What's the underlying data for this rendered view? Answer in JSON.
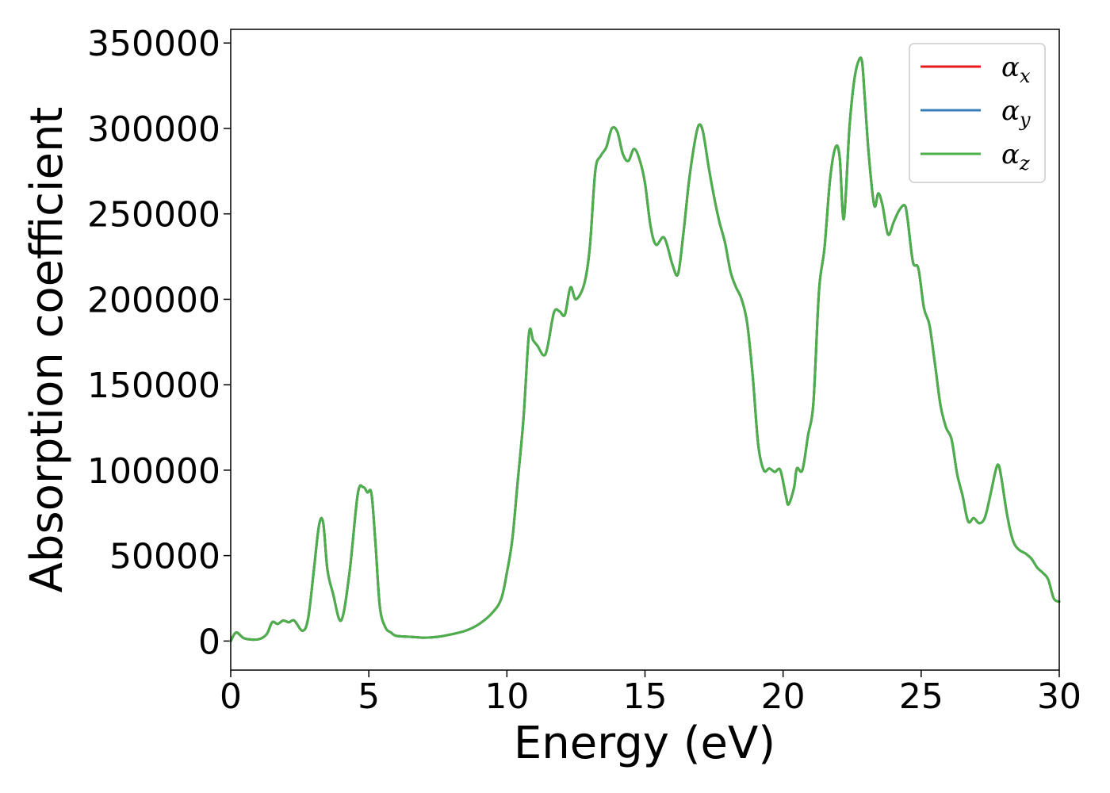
{
  "chart_data": {
    "type": "line",
    "xlabel": "Energy (eV)",
    "ylabel": "Absorption coefficient",
    "xlim": [
      0,
      30
    ],
    "ylim": [
      -17000,
      358000
    ],
    "x_ticks": [
      0,
      5,
      10,
      15,
      20,
      25,
      30
    ],
    "y_ticks": [
      0,
      50000,
      100000,
      150000,
      200000,
      250000,
      300000,
      350000
    ],
    "grid": false,
    "legend_position": "top-right",
    "legend_entries": [
      {
        "label": "α",
        "sub": "x",
        "color": "#e41a1c"
      },
      {
        "label": "α",
        "sub": "y",
        "color": "#377eb8"
      },
      {
        "label": "α",
        "sub": "z",
        "color": "#4daf4a"
      }
    ],
    "x": [
      0,
      0.2,
      0.5,
      1,
      1.3,
      1.5,
      1.7,
      1.9,
      2.1,
      2.3,
      2.6,
      2.8,
      3,
      3.2,
      3.35,
      3.5,
      3.7,
      4,
      4.3,
      4.6,
      4.8,
      4.95,
      5.1,
      5.25,
      5.4,
      5.6,
      5.8,
      6,
      6.5,
      7,
      7.5,
      8,
      8.5,
      9,
      9.5,
      9.8,
      10,
      10.2,
      10.4,
      10.6,
      10.8,
      10.95,
      11.1,
      11.4,
      11.7,
      11.9,
      12.1,
      12.3,
      12.5,
      12.8,
      13,
      13.2,
      13.4,
      13.6,
      13.8,
      14,
      14.2,
      14.4,
      14.6,
      14.8,
      15,
      15.2,
      15.4,
      15.7,
      16,
      16.2,
      16.4,
      16.6,
      16.8,
      16.95,
      17.1,
      17.3,
      17.5,
      17.7,
      17.9,
      18.1,
      18.3,
      18.5,
      18.7,
      18.9,
      19.1,
      19.3,
      19.5,
      19.7,
      19.9,
      20.1,
      20.2,
      20.4,
      20.5,
      20.7,
      20.9,
      21.1,
      21.3,
      21.5,
      21.7,
      21.9,
      22.05,
      22.2,
      22.4,
      22.55,
      22.7,
      22.85,
      22.95,
      23.1,
      23.3,
      23.45,
      23.6,
      23.8,
      24,
      24.2,
      24.4,
      24.5,
      24.7,
      24.9,
      25.1,
      25.3,
      25.5,
      25.7,
      25.9,
      26.1,
      26.3,
      26.5,
      26.7,
      26.9,
      27.1,
      27.3,
      27.5,
      27.7,
      27.8,
      27.9,
      28.1,
      28.3,
      28.5,
      28.8,
      29,
      29.2,
      29.4,
      29.6,
      29.8,
      30
    ],
    "series": [
      {
        "values": [
          0,
          5000,
          1500,
          1000,
          4000,
          11000,
          10000,
          12000,
          11000,
          12000,
          6000,
          13000,
          40000,
          68000,
          69000,
          42000,
          28000,
          12000,
          40000,
          86000,
          90000,
          87000,
          86000,
          55000,
          20000,
          8000,
          5000,
          3000,
          2500,
          2000,
          2500,
          4000,
          6000,
          10000,
          17000,
          25000,
          40000,
          60000,
          95000,
          130000,
          180000,
          176000,
          173000,
          168000,
          192000,
          193000,
          191000,
          207000,
          200000,
          209000,
          230000,
          275000,
          284000,
          289000,
          300000,
          298000,
          285000,
          281000,
          288000,
          282000,
          268000,
          243000,
          232000,
          236000,
          220000,
          215000,
          240000,
          270000,
          292000,
          302000,
          298000,
          278000,
          260000,
          245000,
          233000,
          216000,
          207000,
          200000,
          186000,
          155000,
          115000,
          100000,
          101000,
          99000,
          100000,
          85000,
          80000,
          90000,
          101000,
          100000,
          120000,
          140000,
          205000,
          230000,
          270000,
          289000,
          283000,
          247000,
          300000,
          325000,
          338000,
          340000,
          320000,
          285000,
          255000,
          262000,
          255000,
          238000,
          245000,
          252000,
          255000,
          248000,
          222000,
          218000,
          195000,
          185000,
          162000,
          138000,
          125000,
          118000,
          98000,
          85000,
          70000,
          72000,
          69000,
          72000,
          85000,
          100000,
          103000,
          96000,
          75000,
          60000,
          54000,
          51000,
          48000,
          43000,
          40000,
          36000,
          25000,
          23000
        ]
      },
      {
        "values": [
          0,
          5000,
          1500,
          1000,
          4000,
          11000,
          10000,
          12000,
          11000,
          12000,
          6000,
          13000,
          40000,
          68000,
          69000,
          42000,
          28000,
          12000,
          40000,
          86000,
          90000,
          87000,
          86000,
          55000,
          20000,
          8000,
          5000,
          3000,
          2500,
          2000,
          2500,
          4000,
          6000,
          10000,
          17000,
          25000,
          40000,
          60000,
          95000,
          130000,
          180000,
          176000,
          173000,
          168000,
          192000,
          193000,
          191000,
          207000,
          200000,
          209000,
          230000,
          275000,
          284000,
          289000,
          300000,
          298000,
          285000,
          281000,
          288000,
          282000,
          268000,
          243000,
          232000,
          236000,
          220000,
          215000,
          240000,
          270000,
          292000,
          302000,
          298000,
          278000,
          260000,
          245000,
          233000,
          216000,
          207000,
          200000,
          186000,
          155000,
          115000,
          100000,
          101000,
          99000,
          100000,
          85000,
          80000,
          90000,
          101000,
          100000,
          120000,
          140000,
          205000,
          230000,
          270000,
          289000,
          283000,
          247000,
          300000,
          325000,
          338000,
          340000,
          320000,
          285000,
          255000,
          262000,
          255000,
          238000,
          245000,
          252000,
          255000,
          248000,
          222000,
          218000,
          195000,
          185000,
          162000,
          138000,
          125000,
          118000,
          98000,
          85000,
          70000,
          72000,
          69000,
          72000,
          85000,
          100000,
          103000,
          96000,
          75000,
          60000,
          54000,
          51000,
          48000,
          43000,
          40000,
          36000,
          25000,
          23000
        ]
      },
      {
        "values": [
          0,
          5000,
          1500,
          1000,
          4000,
          11000,
          10000,
          12000,
          11000,
          12000,
          6000,
          13000,
          40000,
          68000,
          69000,
          42000,
          28000,
          12000,
          40000,
          86000,
          90000,
          87000,
          86000,
          55000,
          20000,
          8000,
          5000,
          3000,
          2500,
          2000,
          2500,
          4000,
          6000,
          10000,
          17000,
          25000,
          40000,
          60000,
          95000,
          130000,
          180000,
          176000,
          173000,
          168000,
          192000,
          193000,
          191000,
          207000,
          200000,
          209000,
          230000,
          275000,
          284000,
          289000,
          300000,
          298000,
          285000,
          281000,
          288000,
          282000,
          268000,
          243000,
          232000,
          236000,
          220000,
          215000,
          240000,
          270000,
          292000,
          302000,
          298000,
          278000,
          260000,
          245000,
          233000,
          216000,
          207000,
          200000,
          186000,
          155000,
          115000,
          100000,
          101000,
          99000,
          100000,
          85000,
          80000,
          90000,
          101000,
          100000,
          120000,
          140000,
          205000,
          230000,
          270000,
          289000,
          283000,
          247000,
          300000,
          325000,
          338000,
          340000,
          320000,
          285000,
          255000,
          262000,
          255000,
          238000,
          245000,
          252000,
          255000,
          248000,
          222000,
          218000,
          195000,
          185000,
          162000,
          138000,
          125000,
          118000,
          98000,
          85000,
          70000,
          72000,
          69000,
          72000,
          85000,
          100000,
          103000,
          96000,
          75000,
          60000,
          54000,
          51000,
          48000,
          43000,
          40000,
          36000,
          25000,
          23000
        ]
      }
    ]
  }
}
